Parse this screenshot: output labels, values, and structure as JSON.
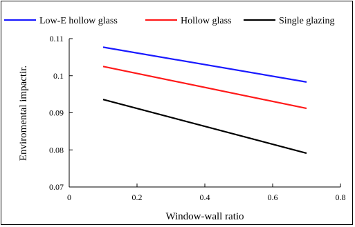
{
  "chart_data": {
    "type": "line",
    "xlabel": "Window-wall ratio",
    "ylabel": "Enviromental impactir.",
    "xlim": [
      0,
      0.8
    ],
    "ylim": [
      0.07,
      0.11
    ],
    "xticks": [
      "0",
      "0.2",
      "0.4",
      "0.6",
      "0.8"
    ],
    "yticks": [
      "0.07",
      "0.08",
      "0.09",
      "0.1",
      "0.11"
    ],
    "legend_position": "top",
    "grid": false,
    "series": [
      {
        "name": "Low-E hollow glass",
        "color": "#1a1aff",
        "x": [
          0.1,
          0.7
        ],
        "y": [
          0.1077,
          0.0983
        ]
      },
      {
        "name": "Hollow glass",
        "color": "#ff1a1a",
        "x": [
          0.1,
          0.7
        ],
        "y": [
          0.1025,
          0.0912
        ]
      },
      {
        "name": "Single glazing",
        "color": "#000000",
        "x": [
          0.1,
          0.7
        ],
        "y": [
          0.0936,
          0.0791
        ]
      }
    ]
  }
}
